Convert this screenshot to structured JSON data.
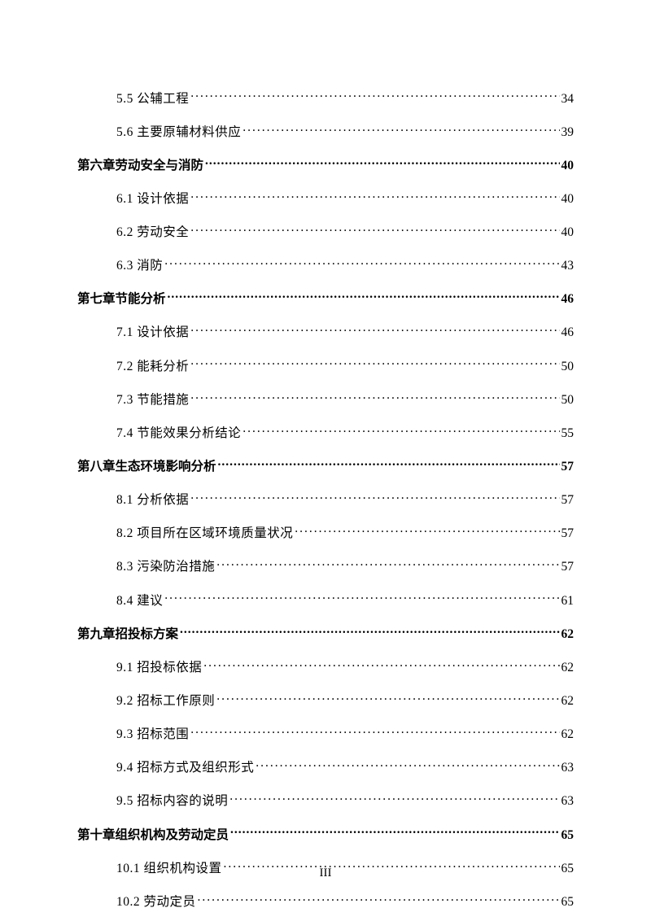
{
  "entries": [
    {
      "level": "section",
      "label": "5.5 公辅工程 ",
      "page": "34"
    },
    {
      "level": "section",
      "label": "5.6 主要原辅材料供应 ",
      "page": "39"
    },
    {
      "level": "chapter",
      "label": "第六章劳动安全与消防 ",
      "page": "40"
    },
    {
      "level": "section",
      "label": "6.1 设计依据 ",
      "page": "40"
    },
    {
      "level": "section",
      "label": "6.2 劳动安全 ",
      "page": "40"
    },
    {
      "level": "section",
      "label": "6.3 消防 ",
      "page": "43"
    },
    {
      "level": "chapter",
      "label": "第七章节能分析 ",
      "page": "46"
    },
    {
      "level": "section",
      "label": "7.1 设计依据 ",
      "page": "46"
    },
    {
      "level": "section",
      "label": "7.2 能耗分析 ",
      "page": "50"
    },
    {
      "level": "section",
      "label": "7.3 节能措施 ",
      "page": "50"
    },
    {
      "level": "section",
      "label": "7.4 节能效果分析结论 ",
      "page": "55"
    },
    {
      "level": "chapter",
      "label": "第八章生态环境影响分析 ",
      "page": "57"
    },
    {
      "level": "section",
      "label": "8.1 分析依据 ",
      "page": "57"
    },
    {
      "level": "section",
      "label": "8.2 项目所在区域环境质量状况 ",
      "page": "57"
    },
    {
      "level": "section",
      "label": "8.3 污染防治措施 ",
      "page": "57"
    },
    {
      "level": "section",
      "label": "8.4 建议",
      "page": "61"
    },
    {
      "level": "chapter",
      "label": "第九章招投标方案 ",
      "page": "62"
    },
    {
      "level": "section",
      "label": "9.1 招投标依据 ",
      "page": "62"
    },
    {
      "level": "section",
      "label": "9.2 招标工作原则 ",
      "page": "62"
    },
    {
      "level": "section",
      "label": "9.3 招标范围 ",
      "page": "62"
    },
    {
      "level": "section",
      "label": "9.4 招标方式及组织形式 ",
      "page": "63"
    },
    {
      "level": "section",
      "label": "9.5 招标内容的说明 ",
      "page": "63"
    },
    {
      "level": "chapter",
      "label": "第十章组织机构及劳动定员 ",
      "page": "65"
    },
    {
      "level": "section",
      "label": "10.1 组织机构设置 ",
      "page": "65"
    },
    {
      "level": "section",
      "label": "10.2 劳动定员 ",
      "page": "65"
    }
  ],
  "pageNumber": "III"
}
